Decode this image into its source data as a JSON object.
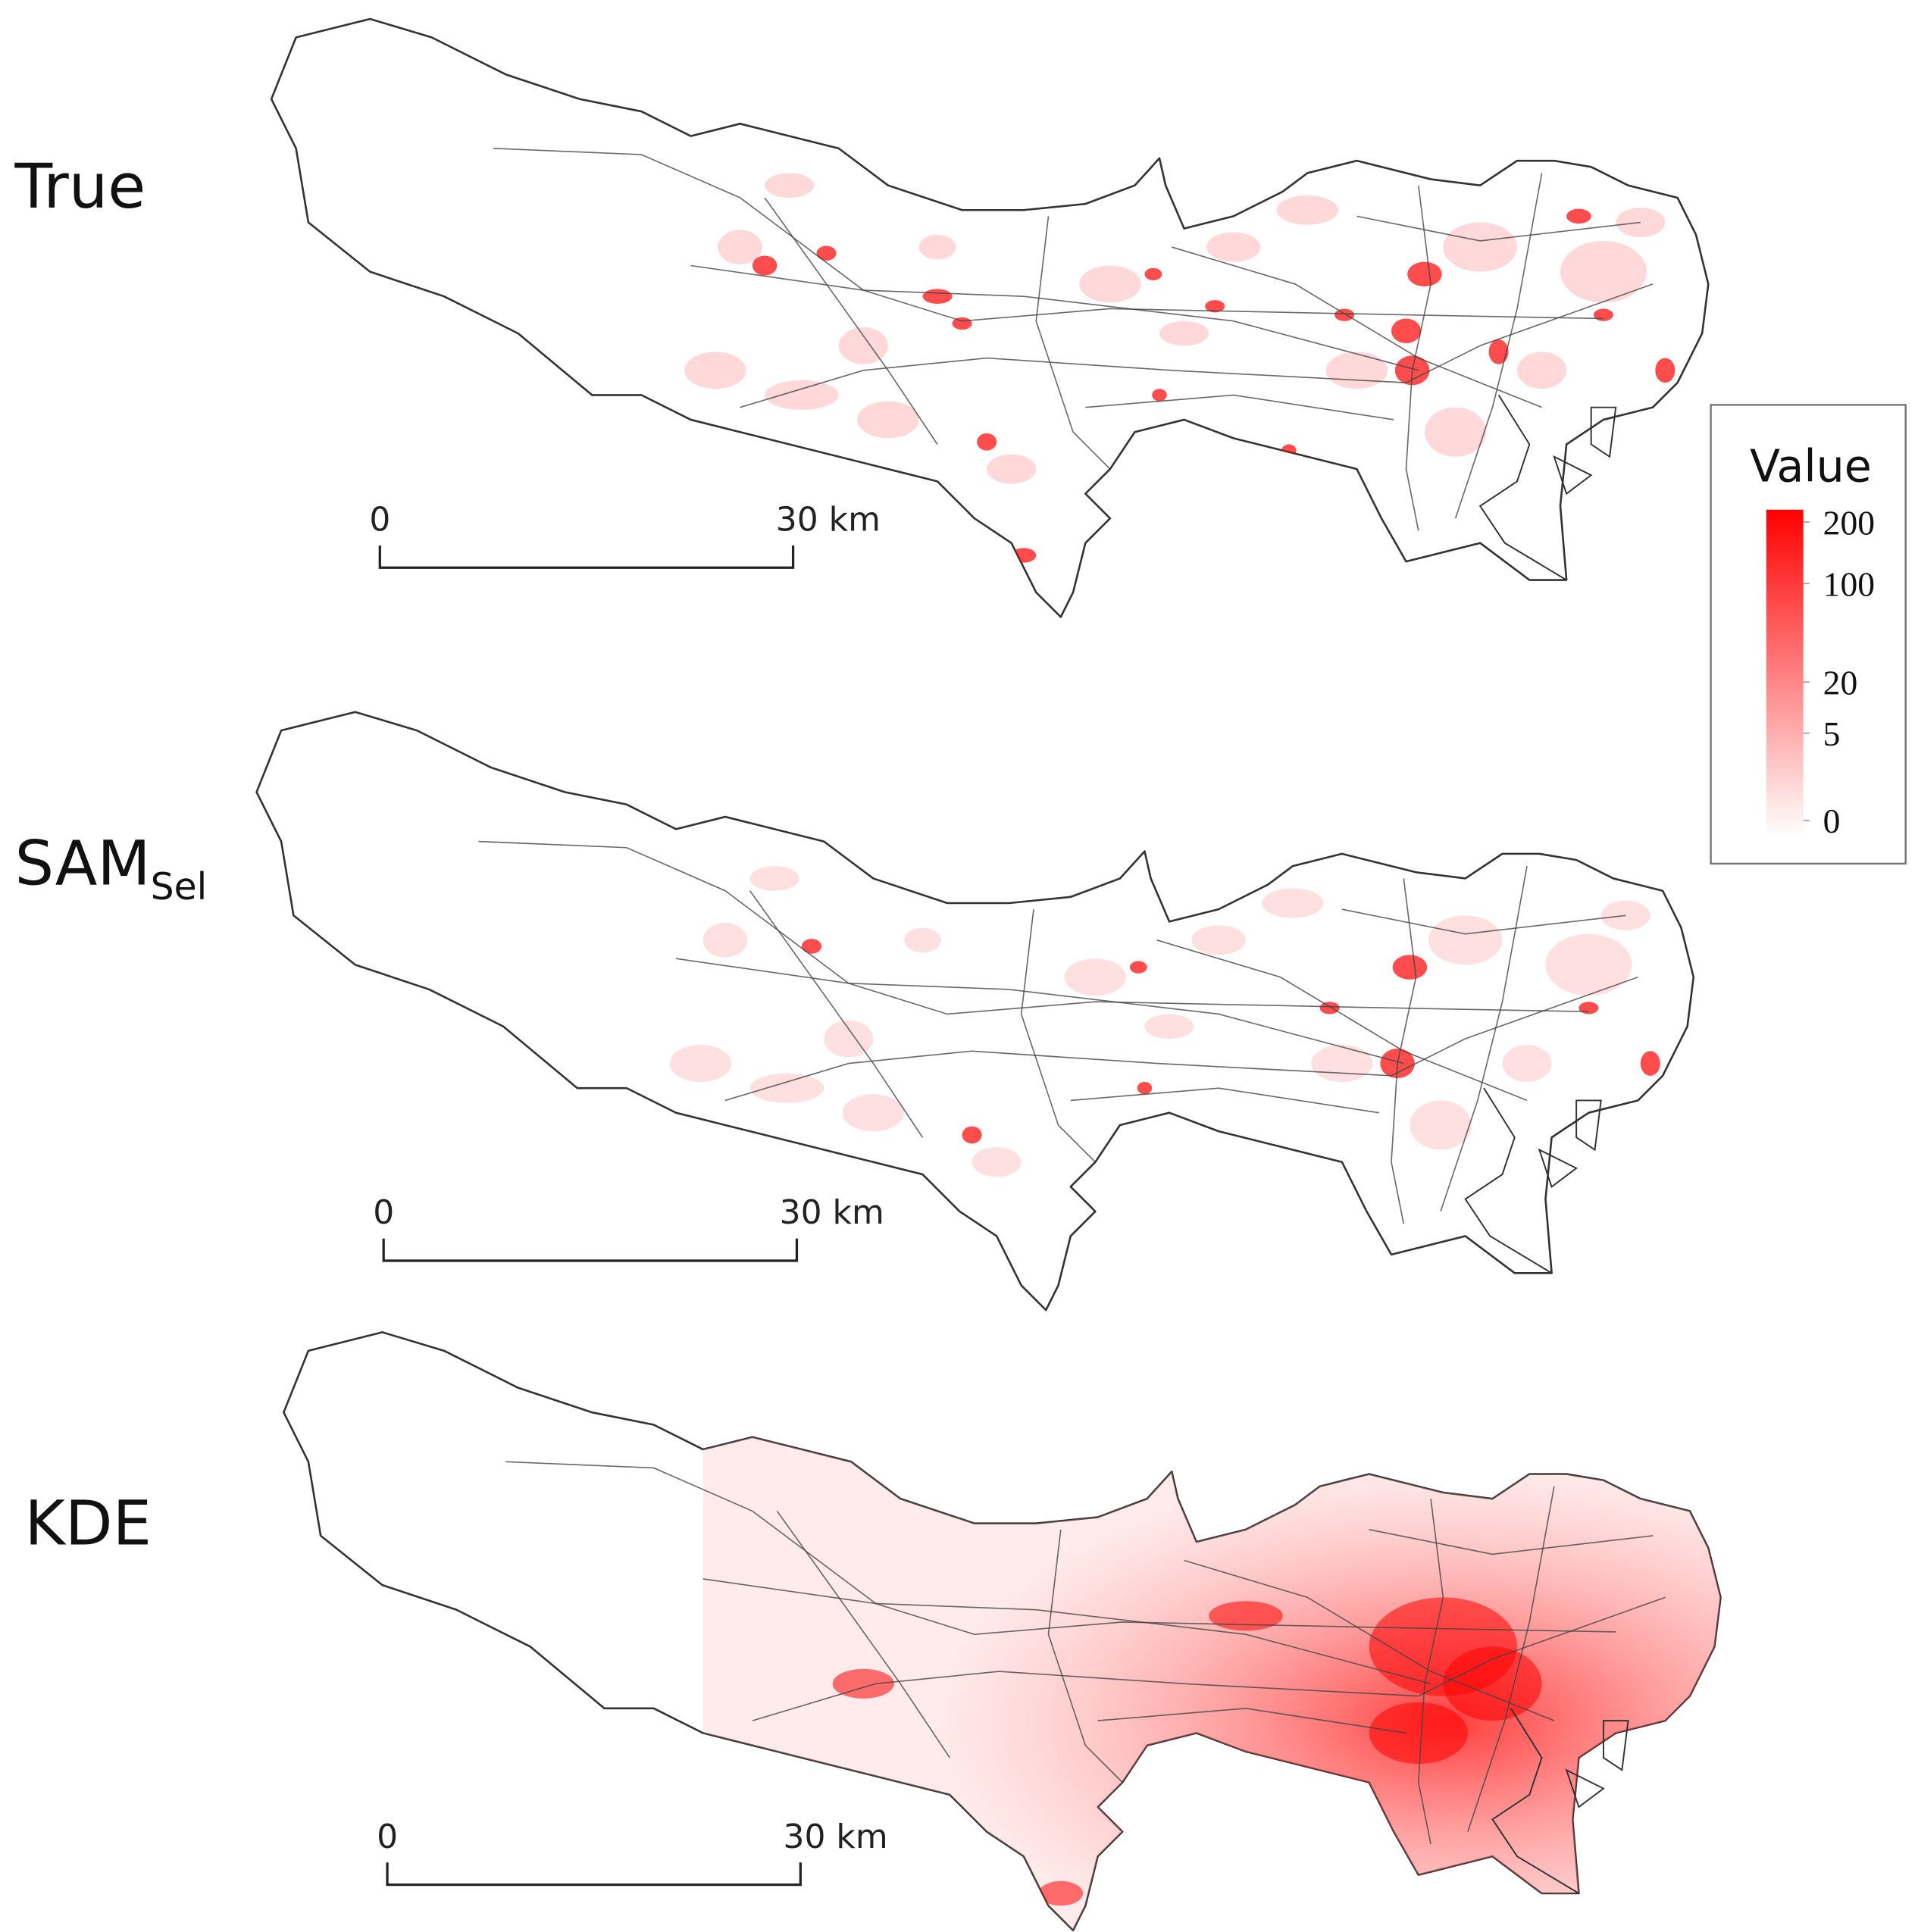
{
  "panels": [
    {
      "label": "True",
      "scale_bar": {
        "start": "0",
        "end": "30 km"
      }
    },
    {
      "label": "SAM",
      "label_subscript": "Sel",
      "scale_bar": {
        "start": "0",
        "end": "30 km"
      }
    },
    {
      "label": "KDE",
      "scale_bar": {
        "start": "0",
        "end": "30 km"
      }
    }
  ],
  "legend": {
    "title": "Value",
    "ticks": [
      200,
      100,
      20,
      5,
      0
    ],
    "color": "#ff0000"
  }
}
